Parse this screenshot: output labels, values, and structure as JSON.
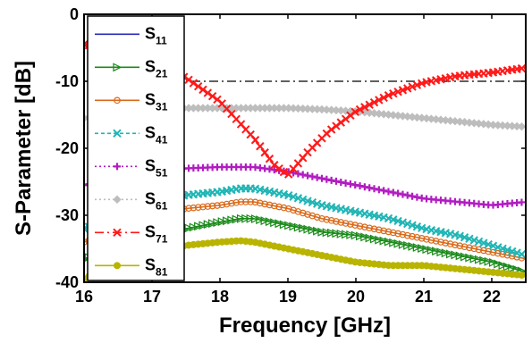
{
  "chart_data": {
    "type": "line",
    "xlabel": "Frequency [GHz]",
    "ylabel": "S-Parameter [dB]",
    "xlim": [
      16,
      22.5
    ],
    "ylim": [
      -40,
      0
    ],
    "xticks": [
      "16",
      "17",
      "18",
      "19",
      "20",
      "21",
      "22"
    ],
    "yticks": [
      "0",
      "-10",
      "-20",
      "-30",
      "-40"
    ],
    "reference_line": {
      "y": -10,
      "style": "dash-dot",
      "color": "#000000"
    },
    "legend_position": "left",
    "grid": false,
    "series": [
      {
        "name": "S",
        "sub": "11",
        "color": "#2a2ab4",
        "marker": "none",
        "dash": "",
        "x": [],
        "y": []
      },
      {
        "name": "S",
        "sub": "21",
        "color": "#1a8a1a",
        "marker": "triangle-right",
        "dash": "",
        "x": [
          16,
          16.5,
          17,
          17.5,
          18,
          18.3,
          18.5,
          19,
          19.5,
          20,
          20.5,
          21,
          21.5,
          22,
          22.5
        ],
        "y": [
          -36.5,
          -35,
          -33,
          -32,
          -31,
          -30.5,
          -30.5,
          -31.5,
          -32.5,
          -33,
          -34,
          -35,
          -36,
          -37,
          -38.5
        ]
      },
      {
        "name": "S",
        "sub": "31",
        "color": "#d96a1a",
        "marker": "circle",
        "dash": "",
        "x": [
          16,
          16.5,
          17,
          17.5,
          18,
          18.3,
          18.5,
          19,
          19.5,
          20,
          20.5,
          21,
          21.5,
          22,
          22.5
        ],
        "y": [
          -34,
          -32.5,
          -30,
          -29,
          -28.5,
          -28,
          -28,
          -29,
          -30.5,
          -31.5,
          -32.5,
          -33.5,
          -34.5,
          -35.5,
          -36.5
        ]
      },
      {
        "name": "S",
        "sub": "41",
        "color": "#20b5b5",
        "marker": "x",
        "dash": "4,3",
        "x": [
          16,
          16.5,
          17,
          17.5,
          18,
          18.3,
          18.5,
          19,
          19.5,
          20,
          20.5,
          21,
          21.5,
          22,
          22.5
        ],
        "y": [
          -32,
          -30,
          -28,
          -27,
          -26.5,
          -26,
          -26,
          -27,
          -28.5,
          -29.5,
          -30.5,
          -32,
          -33,
          -34.5,
          -36
        ]
      },
      {
        "name": "S",
        "sub": "51",
        "color": "#b01cc0",
        "marker": "plus",
        "dash": "2,3",
        "x": [
          16,
          16.5,
          17,
          17.5,
          18,
          18.5,
          19,
          19.5,
          20,
          20.5,
          21,
          21.5,
          22,
          22.5
        ],
        "y": [
          -25.5,
          -24.5,
          -23.5,
          -23,
          -22.8,
          -22.8,
          -23.5,
          -24.5,
          -25.5,
          -26.5,
          -27.5,
          -28,
          -28.5,
          -28
        ]
      },
      {
        "name": "S",
        "sub": "61",
        "color": "#bdbdbd",
        "marker": "diamond",
        "dash": "2,3",
        "x": [
          16,
          16.5,
          17,
          17.5,
          18,
          18.5,
          19,
          19.5,
          20,
          20.5,
          21,
          21.5,
          22,
          22.5
        ],
        "y": [
          -15.5,
          -15,
          -14.5,
          -14,
          -14,
          -14,
          -14,
          -14.2,
          -14.5,
          -15,
          -15.5,
          -16,
          -16.5,
          -16.8
        ]
      },
      {
        "name": "S",
        "sub": "71",
        "color": "#ff1a1a",
        "marker": "x",
        "dash": "10,4,2,4",
        "x": [
          16,
          16.5,
          17,
          17.5,
          18,
          18.5,
          18.8,
          19,
          19.3,
          19.6,
          20,
          20.5,
          21,
          21.5,
          22,
          22.5
        ],
        "y": [
          -4.5,
          -5.5,
          -7,
          -9.5,
          -13,
          -18.5,
          -22.5,
          -24,
          -20.5,
          -17.5,
          -14.5,
          -12,
          -10.2,
          -9.2,
          -8.7,
          -8
        ]
      },
      {
        "name": "S",
        "sub": "81",
        "color": "#b8b400",
        "marker": "dot",
        "dash": "",
        "x": [
          16,
          16.5,
          17,
          17.5,
          18,
          18.3,
          18.5,
          19,
          19.5,
          20,
          20.5,
          21,
          21.5,
          22,
          22.5
        ],
        "y": [
          -39.5,
          -37,
          -35.5,
          -34.5,
          -34,
          -33.8,
          -34,
          -35,
          -36,
          -37,
          -37.5,
          -37.5,
          -38,
          -38.5,
          -39
        ]
      }
    ]
  }
}
